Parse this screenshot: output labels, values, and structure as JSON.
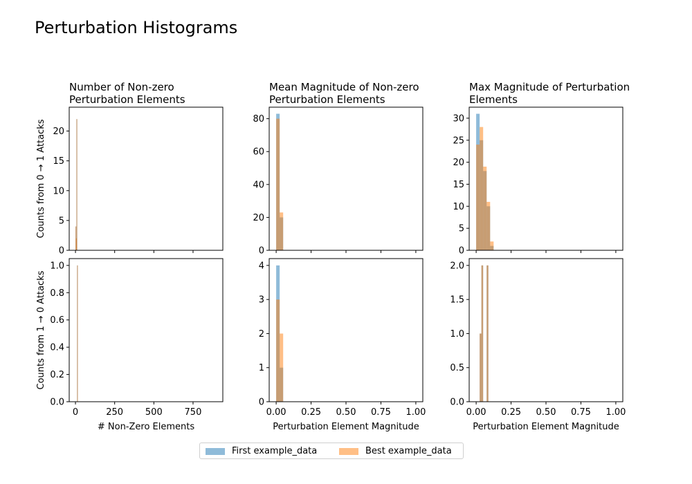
{
  "figure": {
    "title": "Perturbation Histograms",
    "legend": [
      {
        "label": "First example_data",
        "color": "#1f77b4"
      },
      {
        "label": "Best example_data",
        "color": "#ff7f0e"
      }
    ]
  },
  "chart_data": [
    {
      "type": "bar",
      "title": "Number of Non-zero\nPerturbation Elements",
      "xlabel": "",
      "ylabel": "Counts from 0 → 1 Attacks",
      "xlim": [
        -40,
        940
      ],
      "ylim": [
        0,
        24
      ],
      "xticks": [
        0,
        250,
        500,
        750
      ],
      "xtick_labels_shown": false,
      "yticks": [
        0,
        5,
        10,
        15,
        20
      ],
      "series": [
        {
          "name": "First example_data",
          "color": "#1f77b4",
          "bars": [
            [
              0,
              3,
              4
            ],
            [
              3,
              6,
              2
            ],
            [
              6,
              9,
              22
            ]
          ]
        },
        {
          "name": "Best example_data",
          "color": "#ff7f0e",
          "bars": [
            [
              0,
              3,
              4
            ],
            [
              3,
              6,
              2
            ],
            [
              6,
              9,
              22
            ]
          ]
        }
      ]
    },
    {
      "type": "bar",
      "title": "Mean Magnitude of Non-zero\nPerturbation Elements",
      "xlabel": "",
      "ylabel": "",
      "xlim": [
        -0.05,
        1.05
      ],
      "ylim": [
        0,
        87
      ],
      "xticks": [
        0,
        0.25,
        0.5,
        0.75,
        1.0
      ],
      "xtick_labels_shown": false,
      "yticks": [
        0,
        20,
        40,
        60,
        80
      ],
      "series": [
        {
          "name": "First example_data",
          "color": "#1f77b4",
          "bars": [
            [
              0,
              0.025,
              83
            ],
            [
              0.025,
              0.05,
              20
            ]
          ]
        },
        {
          "name": "Best example_data",
          "color": "#ff7f0e",
          "bars": [
            [
              0,
              0.025,
              80
            ],
            [
              0.025,
              0.05,
              23
            ]
          ]
        }
      ]
    },
    {
      "type": "bar",
      "title": "Max Magnitude of Perturbation\nElements",
      "xlabel": "",
      "ylabel": "",
      "xlim": [
        -0.05,
        1.05
      ],
      "ylim": [
        0,
        32.5
      ],
      "xticks": [
        0,
        0.25,
        0.5,
        0.75,
        1.0
      ],
      "xtick_labels_shown": false,
      "yticks": [
        0,
        5,
        10,
        15,
        20,
        25,
        30
      ],
      "series": [
        {
          "name": "First example_data",
          "color": "#1f77b4",
          "bars": [
            [
              0,
              0.025,
              31
            ],
            [
              0.025,
              0.05,
              25
            ],
            [
              0.05,
              0.075,
              18
            ],
            [
              0.075,
              0.1,
              10
            ],
            [
              0.1,
              0.125,
              1
            ]
          ]
        },
        {
          "name": "Best example_data",
          "color": "#ff7f0e",
          "bars": [
            [
              0,
              0.025,
              24
            ],
            [
              0.025,
              0.05,
              28
            ],
            [
              0.05,
              0.075,
              19
            ],
            [
              0.075,
              0.1,
              11
            ],
            [
              0.1,
              0.125,
              2
            ]
          ]
        }
      ]
    },
    {
      "type": "bar",
      "title": "",
      "xlabel": "# Non-Zero Elements",
      "ylabel": "Counts from 1 → 0 Attacks",
      "xlim": [
        -40,
        940
      ],
      "ylim": [
        0,
        1.05
      ],
      "xticks": [
        0,
        250,
        500,
        750
      ],
      "xtick_labels_shown": true,
      "yticks": [
        0.0,
        0.2,
        0.4,
        0.6,
        0.8,
        1.0
      ],
      "series": [
        {
          "name": "First example_data",
          "color": "#1f77b4",
          "bars": [
            [
              10,
              12,
              1
            ]
          ]
        },
        {
          "name": "Best example_data",
          "color": "#ff7f0e",
          "bars": [
            [
              10,
              12,
              1
            ]
          ]
        }
      ]
    },
    {
      "type": "bar",
      "title": "",
      "xlabel": "Perturbation Element Magnitude",
      "ylabel": "",
      "xlim": [
        -0.05,
        1.05
      ],
      "ylim": [
        0,
        4.2
      ],
      "xticks": [
        0,
        0.25,
        0.5,
        0.75,
        1.0
      ],
      "xtick_labels_shown": true,
      "yticks": [
        0,
        1,
        2,
        3,
        4
      ],
      "series": [
        {
          "name": "First example_data",
          "color": "#1f77b4",
          "bars": [
            [
              0,
              0.025,
              4
            ],
            [
              0.025,
              0.05,
              1
            ]
          ]
        },
        {
          "name": "Best example_data",
          "color": "#ff7f0e",
          "bars": [
            [
              0,
              0.025,
              3
            ],
            [
              0.025,
              0.05,
              2
            ]
          ]
        }
      ]
    },
    {
      "type": "bar",
      "title": "",
      "xlabel": "Perturbation Element Magnitude",
      "ylabel": "",
      "xlim": [
        -0.05,
        1.05
      ],
      "ylim": [
        0,
        2.1
      ],
      "xticks": [
        0,
        0.25,
        0.5,
        0.75,
        1.0
      ],
      "xtick_labels_shown": true,
      "yticks": [
        0.0,
        0.5,
        1.0,
        1.5,
        2.0
      ],
      "series": [
        {
          "name": "First example_data",
          "color": "#1f77b4",
          "bars": [
            [
              0.025,
              0.0375,
              1
            ],
            [
              0.0375,
              0.05,
              2
            ],
            [
              0.075,
              0.0875,
              2
            ]
          ]
        },
        {
          "name": "Best example_data",
          "color": "#ff7f0e",
          "bars": [
            [
              0.025,
              0.0375,
              1
            ],
            [
              0.0375,
              0.05,
              2
            ],
            [
              0.075,
              0.0875,
              2
            ]
          ]
        }
      ]
    }
  ]
}
